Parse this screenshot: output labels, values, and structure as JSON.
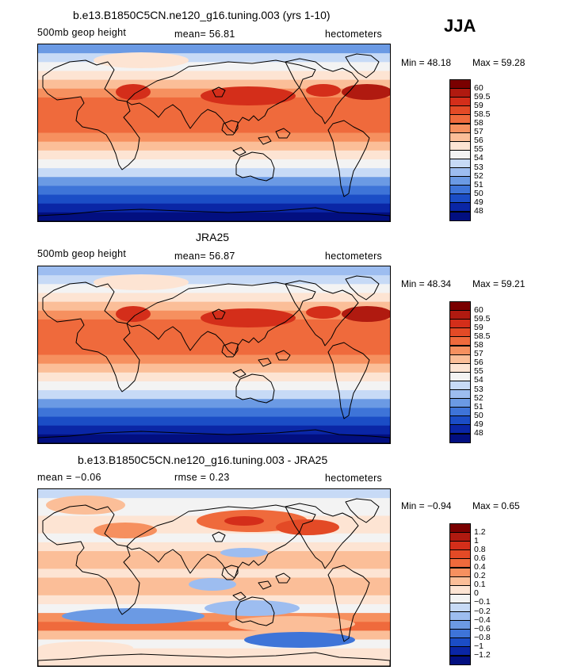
{
  "season_label": "JJA",
  "chart_data": [
    {
      "type": "heatmap",
      "title": "b.e13.B1850C5CN.ne120_g16.tuning.003 (yrs 1-10)",
      "field": "500mb geop height",
      "stat_text": "mean=  56.81",
      "units": "hectometers",
      "min_text": "Min =   48.18",
      "max_text": "Max =   59.28",
      "mean": 56.81,
      "min": 48.18,
      "max": 59.28,
      "colorbar_levels": [
        "60",
        "59.5",
        "59",
        "58.5",
        "58",
        "57",
        "56",
        "55",
        "54",
        "53",
        "52",
        "51",
        "50",
        "49",
        "48"
      ],
      "colors": [
        "#7a0000",
        "#b01a10",
        "#d42e1a",
        "#e34a26",
        "#ef6a3c",
        "#f6905f",
        "#fbbe98",
        "#fde4d3",
        "#f3f3f3",
        "#c7daf6",
        "#9dbdf0",
        "#6b9ae4",
        "#3e74d8",
        "#1b4dc6",
        "#0a26a6",
        "#020f80"
      ],
      "profile_levels": [
        4,
        6,
        7,
        8,
        9,
        10,
        11,
        11,
        11,
        11,
        10,
        9,
        8,
        7,
        6,
        4,
        3,
        2,
        1,
        0
      ]
    },
    {
      "type": "heatmap",
      "title": "JRA25",
      "field": "500mb geop height",
      "stat_text": "mean=  56.87",
      "units": "hectometers",
      "min_text": "Min =   48.34",
      "max_text": "Max =   59.21",
      "mean": 56.87,
      "min": 48.34,
      "max": 59.21,
      "colorbar_levels": [
        "60",
        "59.5",
        "59",
        "58.5",
        "58",
        "57",
        "56",
        "55",
        "54",
        "53",
        "52",
        "51",
        "50",
        "49",
        "48"
      ],
      "colors": [
        "#7a0000",
        "#b01a10",
        "#d42e1a",
        "#e34a26",
        "#ef6a3c",
        "#f6905f",
        "#fbbe98",
        "#fde4d3",
        "#f3f3f3",
        "#c7daf6",
        "#9dbdf0",
        "#6b9ae4",
        "#3e74d8",
        "#1b4dc6",
        "#0a26a6",
        "#020f80"
      ],
      "profile_levels": [
        5,
        6,
        7,
        8,
        9,
        10,
        11,
        11,
        11,
        11,
        10,
        9,
        8,
        7,
        6,
        4,
        3,
        2,
        1,
        0
      ]
    },
    {
      "type": "heatmap",
      "title": "b.e13.B1850C5CN.ne120_g16.tuning.003 - JRA25",
      "field": "mean =   −0.06",
      "stat_text": "rmse =     0.23",
      "units": "hectometers",
      "min_text": "Min =   −0.94",
      "max_text": "Max =     0.65",
      "mean": -0.06,
      "rmse": 0.23,
      "min": -0.94,
      "max": 0.65,
      "colorbar_levels": [
        "1.2",
        "1",
        "0.8",
        "0.6",
        "0.4",
        "0.2",
        "0.1",
        "0",
        "−0.1",
        "−0.2",
        "−0.4",
        "−0.6",
        "−0.8",
        "−1",
        "−1.2"
      ],
      "colors": [
        "#7a0000",
        "#b01a10",
        "#d42e1a",
        "#e34a26",
        "#ef6a3c",
        "#f6905f",
        "#fbbe98",
        "#fde4d3",
        "#f3f3f3",
        "#c7daf6",
        "#9dbdf0",
        "#6b9ae4",
        "#3e74d8",
        "#1b4dc6",
        "#0a26a6",
        "#020f80"
      ],
      "profile_levels": [
        6,
        7,
        7,
        8,
        8,
        7,
        8,
        9,
        9,
        8,
        9,
        9,
        8,
        7,
        10,
        11,
        9,
        7,
        8,
        8
      ]
    }
  ]
}
